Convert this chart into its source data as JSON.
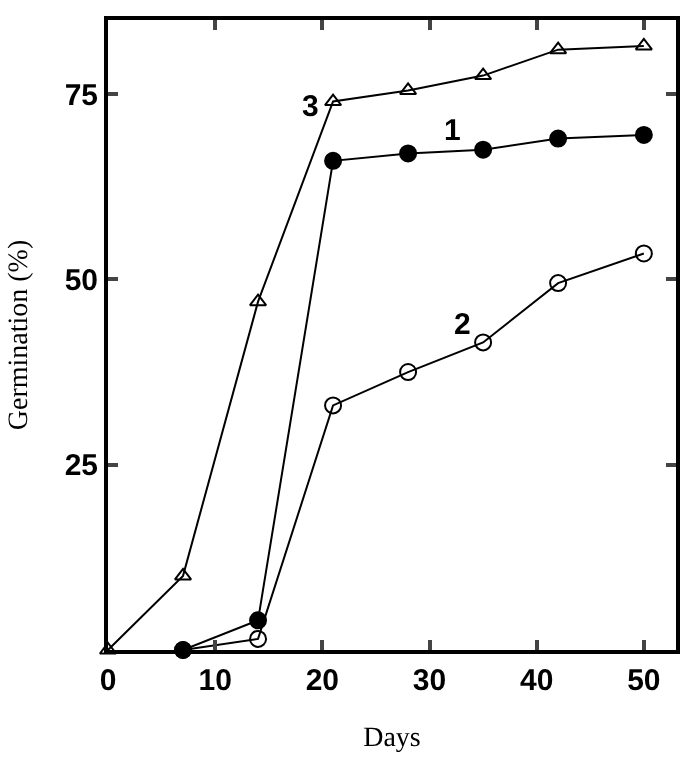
{
  "chart_data": {
    "type": "line",
    "xlabel": "Days",
    "ylabel": "Germination (%)",
    "xlim": [
      0,
      53
    ],
    "ylim": [
      0,
      85
    ],
    "xticks": [
      0,
      10,
      20,
      30,
      40,
      50
    ],
    "yticks": [
      25,
      50,
      75
    ],
    "legend": false,
    "line_style": "solid",
    "series": [
      {
        "name": "1",
        "color": "#000000",
        "marker": "circle",
        "x": [
          7,
          14,
          21,
          28,
          35,
          42,
          50
        ],
        "values": [
          0,
          4,
          66,
          67,
          67.5,
          69,
          69.5
        ]
      },
      {
        "name": "2",
        "color": "#000000",
        "marker": "circle",
        "x": [
          7,
          14,
          21,
          28,
          35,
          42,
          50
        ],
        "values": [
          0,
          1.5,
          33,
          37.5,
          41.5,
          49.5,
          53.5
        ]
      },
      {
        "name": "3",
        "color": "#000000",
        "marker": "triangle",
        "x": [
          0,
          7,
          14,
          21,
          28,
          35,
          42,
          50
        ],
        "values": [
          0,
          10,
          47,
          74,
          75.5,
          77.5,
          81,
          81.5
        ]
      }
    ]
  }
}
